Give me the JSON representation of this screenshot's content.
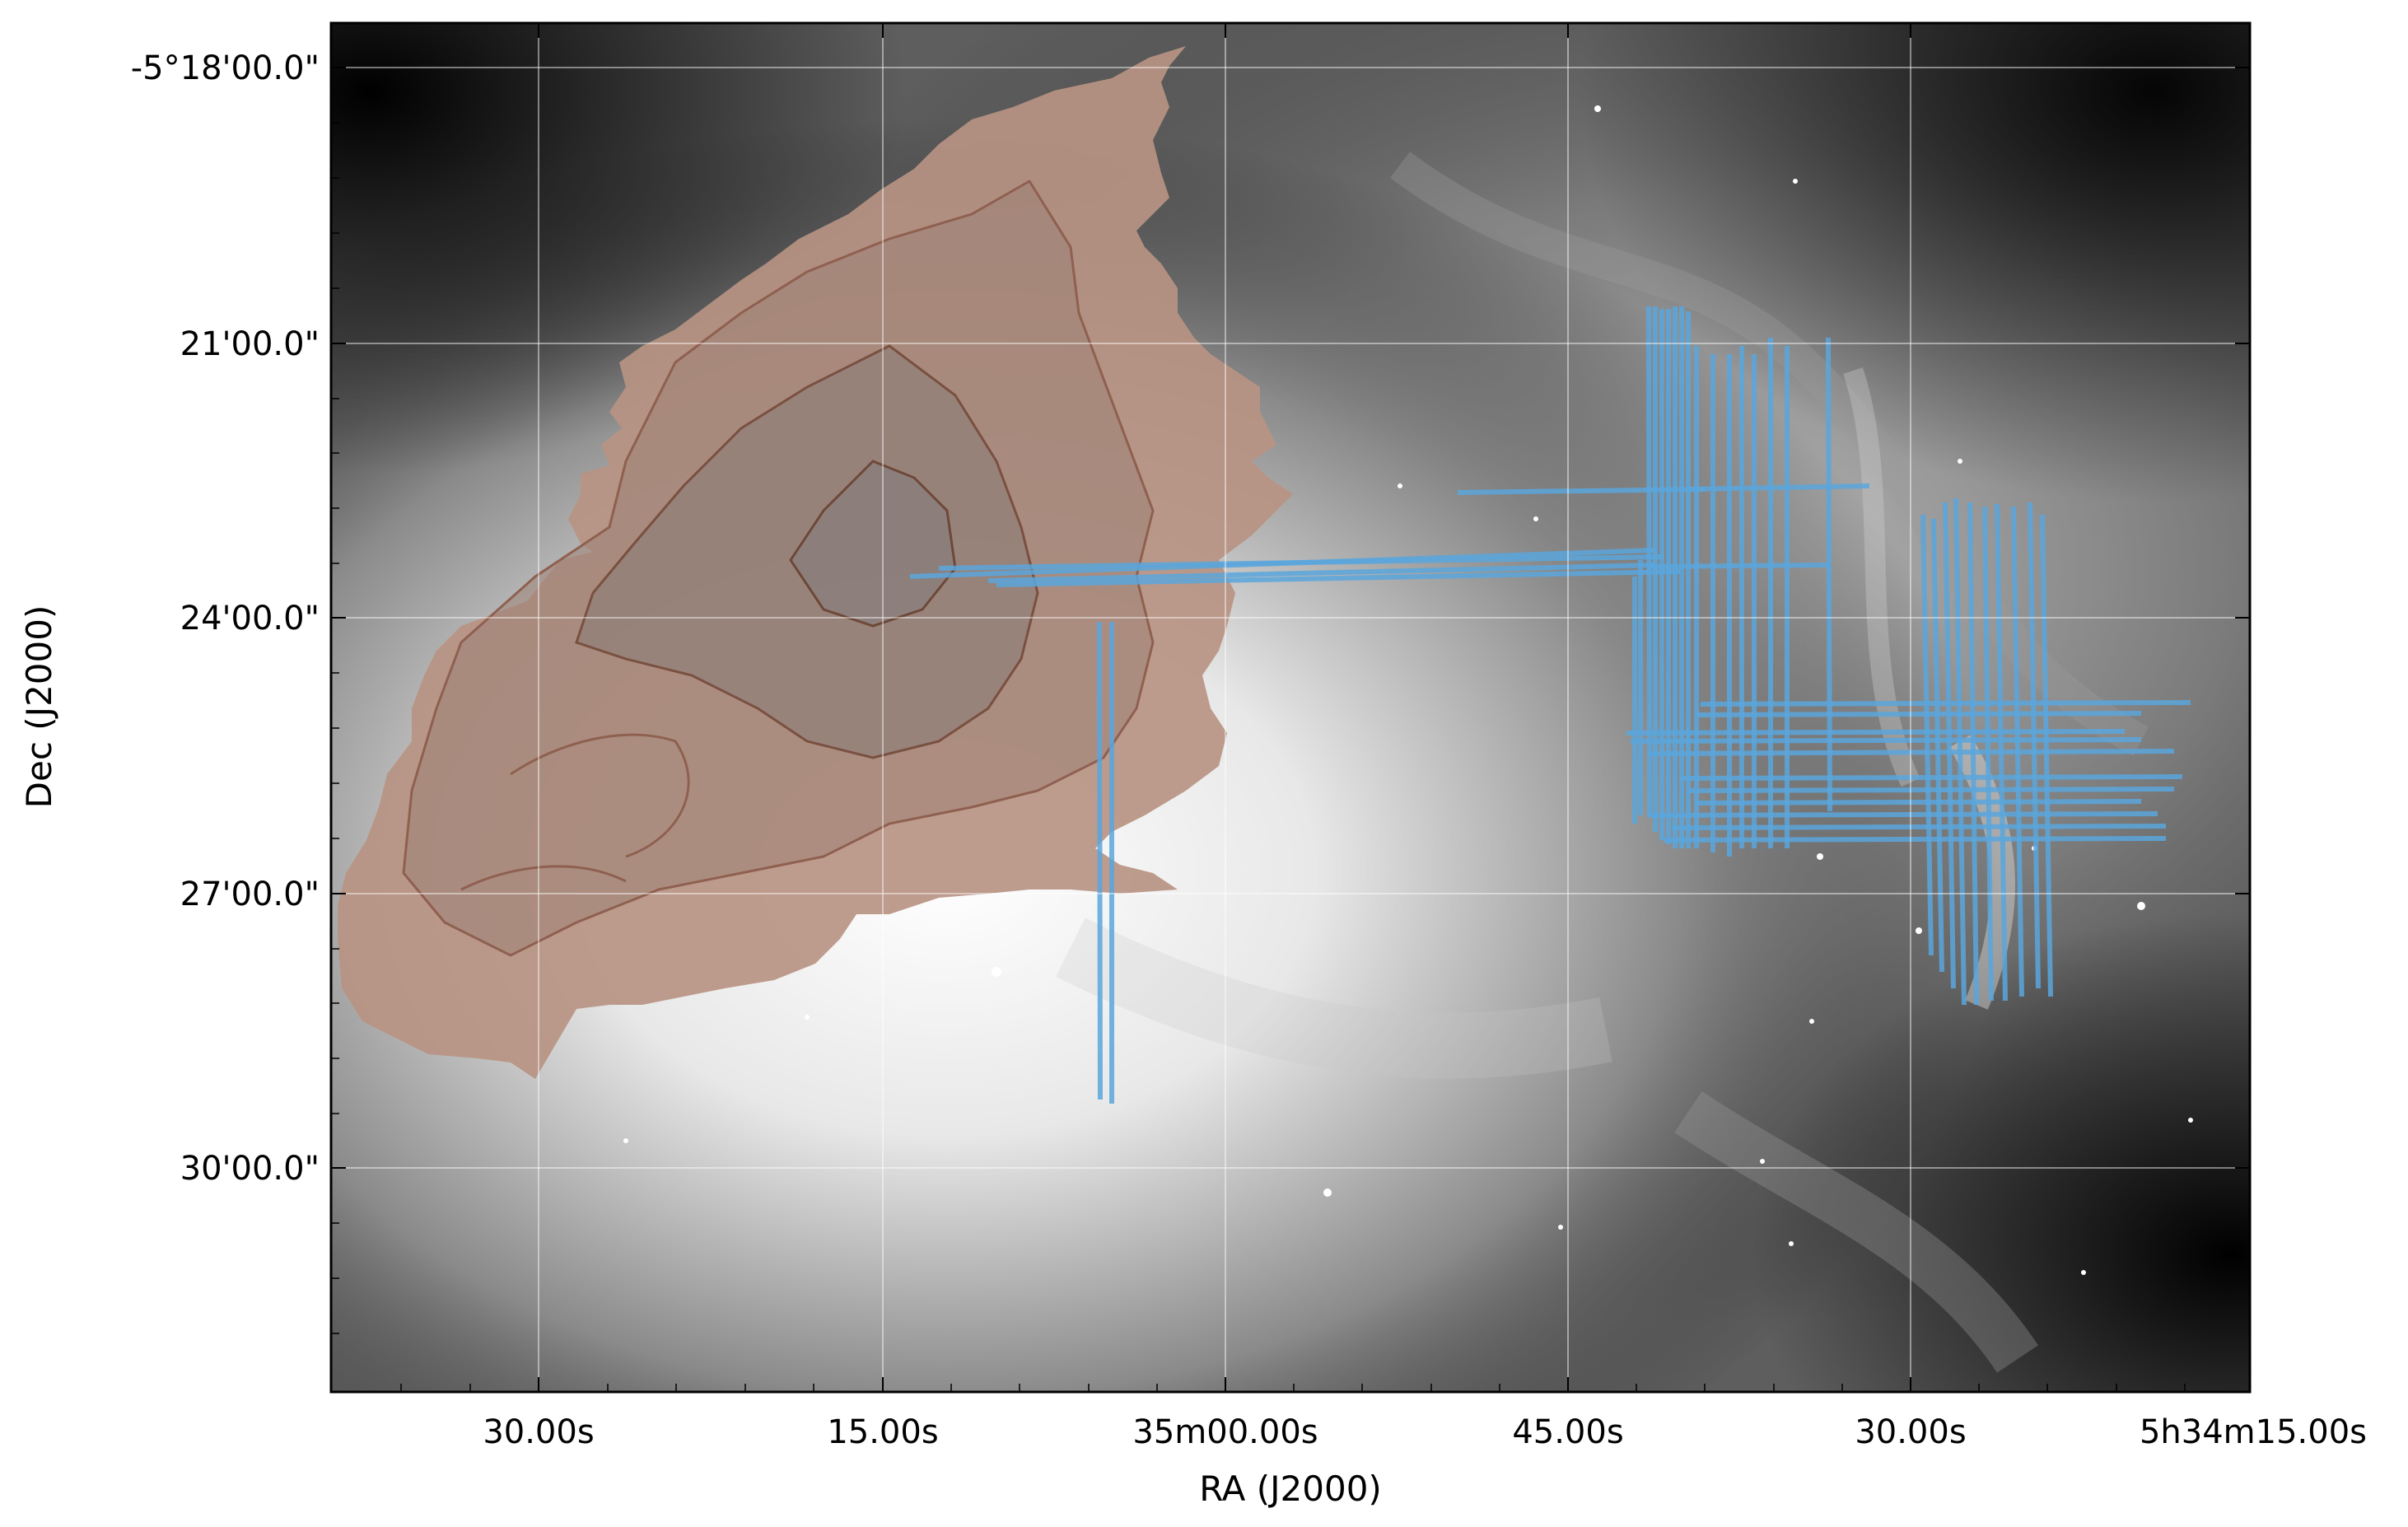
{
  "figure": {
    "x_axis_label": "RA (J2000)",
    "y_axis_label": "Dec (J2000)",
    "x_ticks": [
      "30.00s",
      "15.00s",
      "35m00.00s",
      "45.00s",
      "30.00s",
      "5h34m15.00s"
    ],
    "y_ticks": [
      "-5°18'00.0\"",
      "21'00.0\"",
      "24'00.0\"",
      "27'00.0\"",
      "30'00.0\""
    ],
    "grid": true
  },
  "colors": {
    "background_dark": "#0a0a0a",
    "nebula_bright": "#f2f2f2",
    "overlay_fill": "#b89483",
    "overlay_contour": "#8f6050",
    "slit_lines": "#5aa6dc"
  }
}
